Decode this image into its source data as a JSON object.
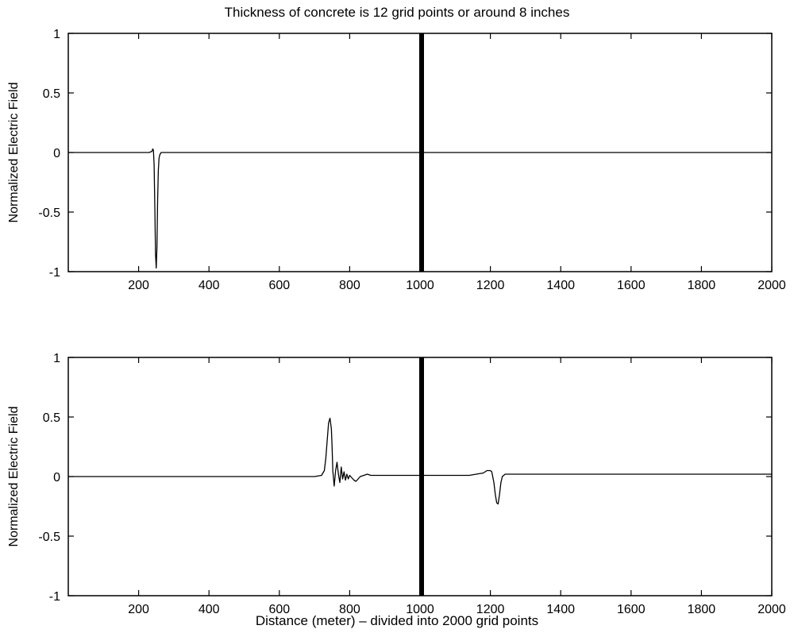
{
  "chart_data": {
    "title": "Thickness of concrete is 12 grid points or around 8 inches",
    "xlabel": "Distance (meter) – divided into 2000 grid points",
    "charts": [
      {
        "type": "line",
        "ylabel": "Normalized Electric Field",
        "xlim": [
          0,
          2000
        ],
        "ylim": [
          -1,
          1
        ],
        "xticks": [
          200,
          400,
          600,
          800,
          1000,
          1200,
          1400,
          1600,
          1800,
          2000
        ],
        "yticks": [
          -1,
          -0.5,
          0,
          0.5,
          1
        ],
        "ytick_labels": [
          "-1",
          "-0.5",
          "0",
          "0.5",
          "1"
        ],
        "grid": false,
        "wall": {
          "x_start": 1000,
          "x_end": 1012
        },
        "series": [
          {
            "x": [
              1,
              200,
              230,
              238,
              240,
              242,
              244,
              246,
              248,
              250,
              252,
              254,
              256,
              258,
              260,
              262,
              264,
              266,
              270,
              280,
              300,
              500,
              800,
              1000,
              1200,
              1600,
              2000
            ],
            "y": [
              0,
              0,
              0,
              0.01,
              0.03,
              0.02,
              -0.1,
              -0.45,
              -0.85,
              -0.97,
              -0.8,
              -0.4,
              -0.15,
              -0.05,
              -0.02,
              -0.01,
              0,
              0,
              0,
              0,
              0,
              0,
              0,
              0,
              0,
              0,
              0
            ]
          }
        ]
      },
      {
        "type": "line",
        "ylabel": "Normalized Electric Field",
        "xlim": [
          0,
          2000
        ],
        "ylim": [
          -1,
          1
        ],
        "xticks": [
          200,
          400,
          600,
          800,
          1000,
          1200,
          1400,
          1600,
          1800,
          2000
        ],
        "yticks": [
          -1,
          -0.5,
          0,
          0.5,
          1
        ],
        "ytick_labels": [
          "-1",
          "-0.5",
          "0",
          "0.5",
          "1"
        ],
        "grid": false,
        "wall": {
          "x_start": 1000,
          "x_end": 1012
        },
        "series": [
          {
            "x": [
              1,
              400,
              600,
              700,
              720,
              728,
              732,
              736,
              740,
              744,
              748,
              750,
              752,
              756,
              760,
              764,
              768,
              772,
              776,
              780,
              784,
              788,
              792,
              796,
              800,
              806,
              812,
              818,
              824,
              830,
              840,
              850,
              860,
              880,
              900,
              1000,
              1100,
              1140,
              1160,
              1180,
              1190,
              1200,
              1204,
              1210,
              1214,
              1218,
              1222,
              1226,
              1230,
              1234,
              1238,
              1242,
              1250,
              1300,
              1600,
              2000
            ],
            "y": [
              0,
              0,
              0,
              0,
              0.01,
              0.05,
              0.15,
              0.3,
              0.45,
              0.49,
              0.4,
              0.25,
              0.05,
              -0.08,
              0.05,
              0.12,
              0.02,
              -0.05,
              0.08,
              -0.02,
              0.04,
              -0.03,
              0.02,
              -0.02,
              0.01,
              -0.01,
              -0.03,
              -0.04,
              -0.02,
              0,
              0.01,
              0.02,
              0.01,
              0.01,
              0.01,
              0.01,
              0.01,
              0.01,
              0.02,
              0.03,
              0.05,
              0.05,
              0.04,
              -0.05,
              -0.15,
              -0.22,
              -0.23,
              -0.15,
              -0.05,
              0,
              0.01,
              0.02,
              0.02,
              0.02,
              0.02,
              0.02
            ]
          }
        ]
      }
    ]
  }
}
